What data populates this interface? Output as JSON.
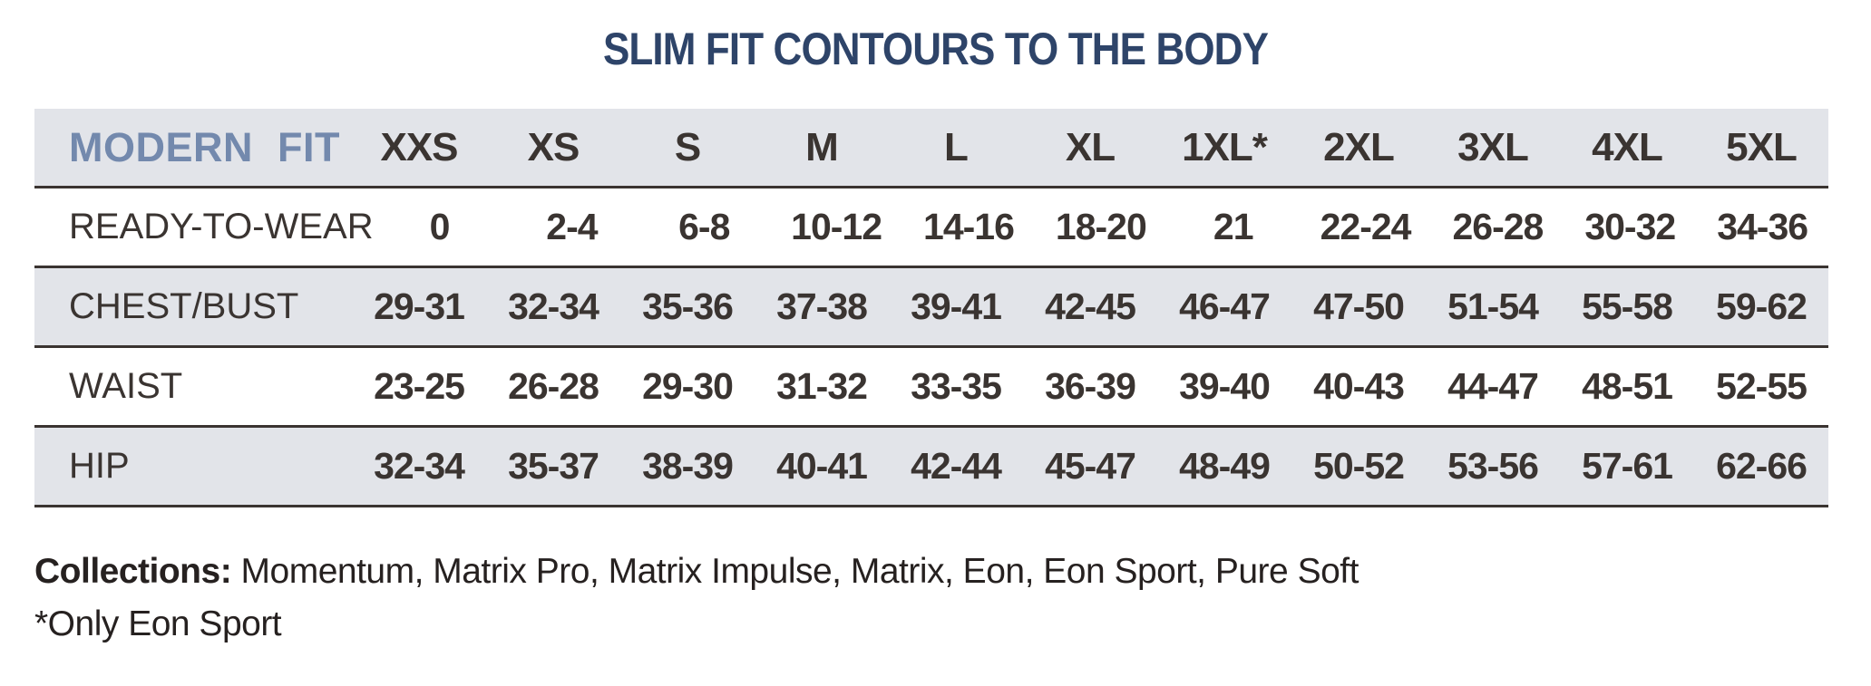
{
  "page": {
    "colors": {
      "title_navy": "#2e4469",
      "header_label_slate": "#7389ad",
      "band_gray": "#e2e4e9",
      "rule_line": "#3a3431",
      "cell_text": "#3a3431"
    }
  },
  "chart_data": {
    "type": "table",
    "title": "SLIM FIT CONTOURS TO THE BODY",
    "header_label": "MODERN FIT",
    "columns": [
      "XXS",
      "XS",
      "S",
      "M",
      "L",
      "XL",
      "1XL*",
      "2XL",
      "3XL",
      "4XL",
      "5XL"
    ],
    "rows": [
      {
        "label": "READY-TO-WEAR",
        "values": [
          "0",
          "2-4",
          "6-8",
          "10-12",
          "14-16",
          "18-20",
          "21",
          "22-24",
          "26-28",
          "30-32",
          "34-36"
        ]
      },
      {
        "label": "CHEST/BUST",
        "values": [
          "29-31",
          "32-34",
          "35-36",
          "37-38",
          "39-41",
          "42-45",
          "46-47",
          "47-50",
          "51-54",
          "55-58",
          "59-62"
        ]
      },
      {
        "label": "WAIST",
        "values": [
          "23-25",
          "26-28",
          "29-30",
          "31-32",
          "33-35",
          "36-39",
          "39-40",
          "40-43",
          "44-47",
          "48-51",
          "52-55"
        ]
      },
      {
        "label": "HIP",
        "values": [
          "32-34",
          "35-37",
          "38-39",
          "40-41",
          "42-44",
          "45-47",
          "48-49",
          "50-52",
          "53-56",
          "57-61",
          "62-66"
        ]
      }
    ],
    "layout": {
      "striped": true,
      "stripe_order": [
        "band",
        "plain",
        "band",
        "plain",
        "band"
      ],
      "grid": "horizontal-rules-only"
    }
  },
  "footer": {
    "collections_label": "Collections:",
    "collections_list": " Momentum, Matrix Pro, Matrix Impulse, Matrix, Eon, Eon Sport, Pure Soft",
    "note": "*Only Eon Sport"
  }
}
